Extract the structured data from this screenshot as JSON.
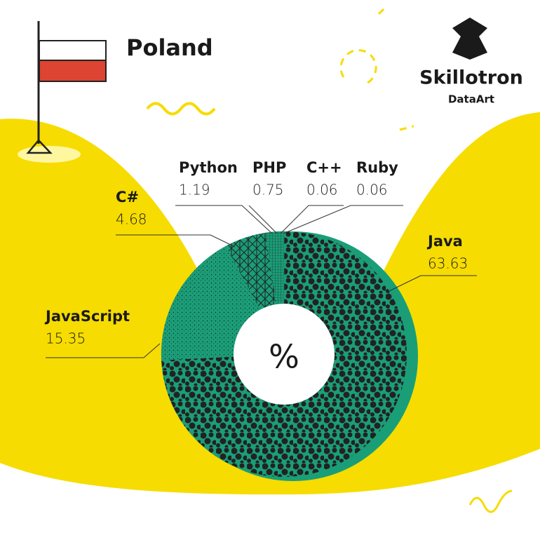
{
  "chart_data": {
    "type": "pie",
    "title": "Poland",
    "center_label": "%",
    "logo": {
      "name": "Skillotron",
      "subtitle": "DataArt"
    },
    "categories": [
      "Java",
      "JavaScript",
      "C#",
      "Python",
      "PHP",
      "C++",
      "Ruby"
    ],
    "values": [
      63.63,
      15.35,
      4.68,
      1.19,
      0.75,
      0.06,
      0.06
    ],
    "colors": [
      "#1a9e78",
      "#1a9e78",
      "#1a9e78",
      "#1a9e78",
      "#1a9e78",
      "#1a9e78",
      "#1a9e78"
    ]
  }
}
